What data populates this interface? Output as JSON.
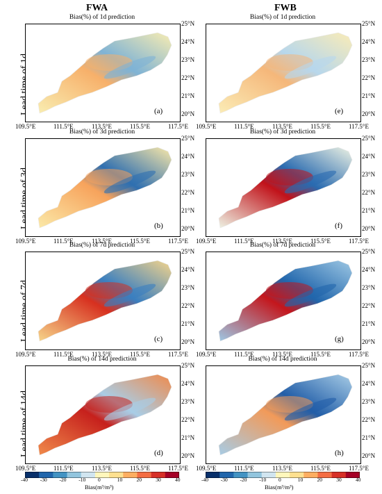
{
  "columns": [
    "FWA",
    "FWB"
  ],
  "rows": [
    "Lead time of 1d",
    "Lead time of 3d",
    "Lead time of 7d",
    "Lead time of 14d"
  ],
  "panel_titles": [
    "Bias(%) of 1d prediction",
    "Bias(%) of 3d prediction",
    "Bias(%) of 7d prediction",
    "Bias(%) of 14d prediction"
  ],
  "panel_tags": {
    "FWA": [
      "(a)",
      "(b)",
      "(c)",
      "(d)"
    ],
    "FWB": [
      "(e)",
      "(f)",
      "(g)",
      "(h)"
    ]
  },
  "lat_labels": [
    "25°N",
    "24°N",
    "23°N",
    "22°N",
    "21°N",
    "20°N"
  ],
  "lon_labels": [
    "109.5°E",
    "111.5°E",
    "113.5°E",
    "115.5°E",
    "117.5°E"
  ],
  "colorbar": {
    "ticks": [
      "-40",
      "-30",
      "-20",
      "-10",
      "0",
      "10",
      "20",
      "30",
      "40"
    ],
    "label": "Bias(m³/m³)",
    "colors": [
      "#08306b",
      "#2166ac",
      "#4393c3",
      "#92c5de",
      "#d1e5f0",
      "#fff7bc",
      "#fee090",
      "#fdae61",
      "#f46d43",
      "#d73027",
      "#a50026"
    ]
  },
  "maps": {
    "FWA": [
      {
        "base": "#f9edb1",
        "hi": "#f7b06a",
        "lo": "#7fb3d5"
      },
      {
        "base": "#fbe9a8",
        "hi": "#f7a35c",
        "lo": "#2f6fb0"
      },
      {
        "base": "#f6d58a",
        "hi": "#d7301f",
        "lo": "#3a7fc0"
      },
      {
        "base": "#f08a4b",
        "hi": "#c6201c",
        "lo": "#a9cde6"
      }
    ],
    "FWB": [
      {
        "base": "#fbecb6",
        "hi": "#f5b77a",
        "lo": "#b7d7ec"
      },
      {
        "base": "#eef3e4",
        "hi": "#c1121a",
        "lo": "#2a6bb0"
      },
      {
        "base": "#9ec8e4",
        "hi": "#c4161c",
        "lo": "#2166ac"
      },
      {
        "base": "#a7cce6",
        "hi": "#f29a59",
        "lo": "#225ea8"
      }
    ]
  }
}
